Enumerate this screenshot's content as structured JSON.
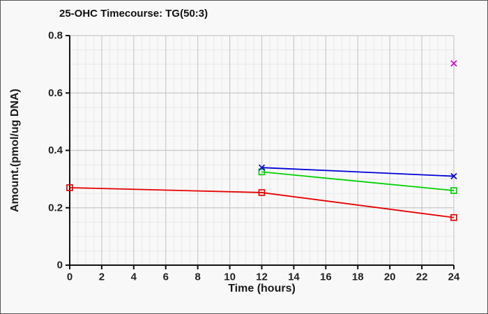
{
  "figure": {
    "background": "#f8f8f8",
    "border_color": "#555555"
  },
  "chart_data": {
    "type": "line",
    "title": "25-OHC Timecourse: TG(50:3)",
    "xlabel": "Time (hours)",
    "ylabel": "Amount.(pmol/ug DNA)",
    "xlim": [
      0,
      24
    ],
    "ylim": [
      0,
      0.8
    ],
    "xticks": [
      0,
      2,
      4,
      6,
      8,
      10,
      12,
      14,
      16,
      18,
      20,
      22,
      24
    ],
    "xtick_labels": [
      "0",
      "2",
      "4",
      "6",
      "8",
      "10",
      "12",
      "14",
      "16",
      "18",
      "20",
      "22",
      "24"
    ],
    "yticks": [
      0,
      0.2,
      0.4,
      0.6,
      0.8
    ],
    "ytick_labels": [
      "0",
      "0.2",
      "0.4",
      "0.6",
      "0.8"
    ],
    "x_minor_step": 0.5,
    "y_minor_step": 0.05,
    "grid": "major+minor",
    "legend": "none",
    "series": [
      {
        "name": "red-squares",
        "color": "#e60000",
        "marker": "square",
        "line": true,
        "x": [
          0,
          12,
          24
        ],
        "y": [
          0.27,
          0.253,
          0.166
        ]
      },
      {
        "name": "green-squares",
        "color": "#00d300",
        "marker": "square",
        "line": true,
        "x": [
          12,
          24
        ],
        "y": [
          0.325,
          0.26
        ]
      },
      {
        "name": "blue-crosses",
        "color": "#0000d9",
        "marker": "x",
        "line": true,
        "x": [
          12,
          24
        ],
        "y": [
          0.34,
          0.31
        ]
      },
      {
        "name": "magenta-cross",
        "color": "#d900d9",
        "marker": "x",
        "line": false,
        "x": [
          24
        ],
        "y": [
          0.703
        ]
      }
    ],
    "styles": {
      "grid_major_color": "#c9c9c9",
      "grid_minor_color": "#e9e9e9",
      "axis_color": "#111111",
      "tick_text_color": "#222222"
    }
  }
}
